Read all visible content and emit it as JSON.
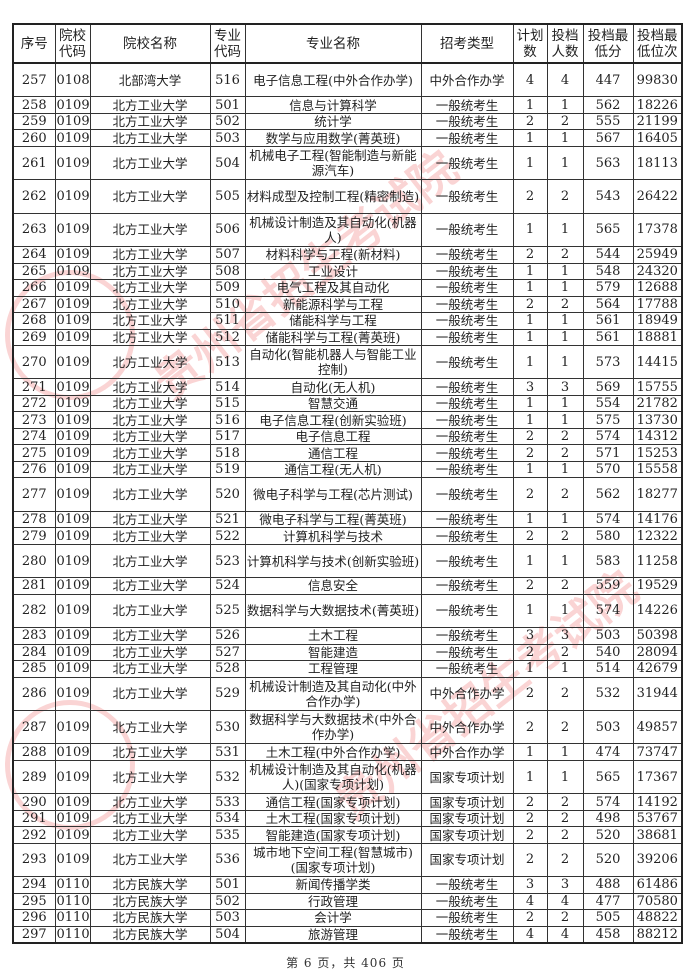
{
  "headers": [
    "序号",
    "院校代码",
    "院校名称",
    "专业代码",
    "专业名称",
    "招考类型",
    "计划数",
    "投档人数",
    "投档最低分",
    "投档最低位次"
  ],
  "rows": [
    {
      "seq": "257",
      "school_code": "0108",
      "school": "北部湾大学",
      "major_code": "516",
      "major": "电子信息工程(中外合作办学)",
      "type": "中外合作办学",
      "plan": "4",
      "admitted": "4",
      "min_score": "447",
      "min_rank": "99830",
      "tall": true
    },
    {
      "seq": "258",
      "school_code": "0109",
      "school": "北方工业大学",
      "major_code": "501",
      "major": "信息与计算科学",
      "type": "一般统考生",
      "plan": "1",
      "admitted": "1",
      "min_score": "562",
      "min_rank": "18226"
    },
    {
      "seq": "259",
      "school_code": "0109",
      "school": "北方工业大学",
      "major_code": "502",
      "major": "统计学",
      "type": "一般统考生",
      "plan": "2",
      "admitted": "2",
      "min_score": "555",
      "min_rank": "21199"
    },
    {
      "seq": "260",
      "school_code": "0109",
      "school": "北方工业大学",
      "major_code": "503",
      "major": "数学与应用数学(菁英班)",
      "type": "一般统考生",
      "plan": "1",
      "admitted": "1",
      "min_score": "567",
      "min_rank": "16405"
    },
    {
      "seq": "261",
      "school_code": "0109",
      "school": "北方工业大学",
      "major_code": "504",
      "major": "机械电子工程(智能制造与新能源汽车)",
      "type": "一般统考生",
      "plan": "1",
      "admitted": "1",
      "min_score": "563",
      "min_rank": "18113",
      "tall": true
    },
    {
      "seq": "262",
      "school_code": "0109",
      "school": "北方工业大学",
      "major_code": "505",
      "major": "材料成型及控制工程(精密制造)",
      "type": "一般统考生",
      "plan": "2",
      "admitted": "2",
      "min_score": "543",
      "min_rank": "26422",
      "tall": true
    },
    {
      "seq": "263",
      "school_code": "0109",
      "school": "北方工业大学",
      "major_code": "506",
      "major": "机械设计制造及其自动化(机器人)",
      "type": "一般统考生",
      "plan": "1",
      "admitted": "1",
      "min_score": "565",
      "min_rank": "17378",
      "tall": true
    },
    {
      "seq": "264",
      "school_code": "0109",
      "school": "北方工业大学",
      "major_code": "507",
      "major": "材料科学与工程(新材料)",
      "type": "一般统考生",
      "plan": "2",
      "admitted": "2",
      "min_score": "544",
      "min_rank": "25949"
    },
    {
      "seq": "265",
      "school_code": "0109",
      "school": "北方工业大学",
      "major_code": "508",
      "major": "工业设计",
      "type": "一般统考生",
      "plan": "1",
      "admitted": "1",
      "min_score": "548",
      "min_rank": "24320"
    },
    {
      "seq": "266",
      "school_code": "0109",
      "school": "北方工业大学",
      "major_code": "509",
      "major": "电气工程及其自动化",
      "type": "一般统考生",
      "plan": "1",
      "admitted": "1",
      "min_score": "579",
      "min_rank": "12688"
    },
    {
      "seq": "267",
      "school_code": "0109",
      "school": "北方工业大学",
      "major_code": "510",
      "major": "新能源科学与工程",
      "type": "一般统考生",
      "plan": "2",
      "admitted": "2",
      "min_score": "564",
      "min_rank": "17788"
    },
    {
      "seq": "268",
      "school_code": "0109",
      "school": "北方工业大学",
      "major_code": "511",
      "major": "储能科学与工程",
      "type": "一般统考生",
      "plan": "1",
      "admitted": "1",
      "min_score": "561",
      "min_rank": "18949"
    },
    {
      "seq": "269",
      "school_code": "0109",
      "school": "北方工业大学",
      "major_code": "512",
      "major": "储能科学与工程(菁英班)",
      "type": "一般统考生",
      "plan": "1",
      "admitted": "1",
      "min_score": "561",
      "min_rank": "18881"
    },
    {
      "seq": "270",
      "school_code": "0109",
      "school": "北方工业大学",
      "major_code": "513",
      "major": "自动化(智能机器人与智能工业控制)",
      "type": "一般统考生",
      "plan": "1",
      "admitted": "1",
      "min_score": "573",
      "min_rank": "14415",
      "tall": true
    },
    {
      "seq": "271",
      "school_code": "0109",
      "school": "北方工业大学",
      "major_code": "514",
      "major": "自动化(无人机)",
      "type": "一般统考生",
      "plan": "3",
      "admitted": "3",
      "min_score": "569",
      "min_rank": "15755"
    },
    {
      "seq": "272",
      "school_code": "0109",
      "school": "北方工业大学",
      "major_code": "515",
      "major": "智慧交通",
      "type": "一般统考生",
      "plan": "1",
      "admitted": "1",
      "min_score": "554",
      "min_rank": "21782"
    },
    {
      "seq": "273",
      "school_code": "0109",
      "school": "北方工业大学",
      "major_code": "516",
      "major": "电子信息工程(创新实验班)",
      "type": "一般统考生",
      "plan": "1",
      "admitted": "1",
      "min_score": "575",
      "min_rank": "13730"
    },
    {
      "seq": "274",
      "school_code": "0109",
      "school": "北方工业大学",
      "major_code": "517",
      "major": "电子信息工程",
      "type": "一般统考生",
      "plan": "2",
      "admitted": "2",
      "min_score": "574",
      "min_rank": "14312"
    },
    {
      "seq": "275",
      "school_code": "0109",
      "school": "北方工业大学",
      "major_code": "518",
      "major": "通信工程",
      "type": "一般统考生",
      "plan": "2",
      "admitted": "2",
      "min_score": "571",
      "min_rank": "15253"
    },
    {
      "seq": "276",
      "school_code": "0109",
      "school": "北方工业大学",
      "major_code": "519",
      "major": "通信工程(无人机)",
      "type": "一般统考生",
      "plan": "1",
      "admitted": "1",
      "min_score": "570",
      "min_rank": "15558"
    },
    {
      "seq": "277",
      "school_code": "0109",
      "school": "北方工业大学",
      "major_code": "520",
      "major": "微电子科学与工程(芯片测试)",
      "type": "一般统考生",
      "plan": "2",
      "admitted": "2",
      "min_score": "562",
      "min_rank": "18277",
      "tall": true
    },
    {
      "seq": "278",
      "school_code": "0109",
      "school": "北方工业大学",
      "major_code": "521",
      "major": "微电子科学与工程(菁英班)",
      "type": "一般统考生",
      "plan": "1",
      "admitted": "1",
      "min_score": "574",
      "min_rank": "14176"
    },
    {
      "seq": "279",
      "school_code": "0109",
      "school": "北方工业大学",
      "major_code": "522",
      "major": "计算机科学与技术",
      "type": "一般统考生",
      "plan": "2",
      "admitted": "2",
      "min_score": "580",
      "min_rank": "12322"
    },
    {
      "seq": "280",
      "school_code": "0109",
      "school": "北方工业大学",
      "major_code": "523",
      "major": "计算机科学与技术(创新实验班)",
      "type": "一般统考生",
      "plan": "1",
      "admitted": "1",
      "min_score": "583",
      "min_rank": "11258",
      "tall": true
    },
    {
      "seq": "281",
      "school_code": "0109",
      "school": "北方工业大学",
      "major_code": "524",
      "major": "信息安全",
      "type": "一般统考生",
      "plan": "2",
      "admitted": "2",
      "min_score": "559",
      "min_rank": "19529"
    },
    {
      "seq": "282",
      "school_code": "0109",
      "school": "北方工业大学",
      "major_code": "525",
      "major": "数据科学与大数据技术(菁英班)",
      "type": "一般统考生",
      "plan": "1",
      "admitted": "1",
      "min_score": "574",
      "min_rank": "14226",
      "tall": true
    },
    {
      "seq": "283",
      "school_code": "0109",
      "school": "北方工业大学",
      "major_code": "526",
      "major": "土木工程",
      "type": "一般统考生",
      "plan": "3",
      "admitted": "3",
      "min_score": "503",
      "min_rank": "50398"
    },
    {
      "seq": "284",
      "school_code": "0109",
      "school": "北方工业大学",
      "major_code": "527",
      "major": "智能建造",
      "type": "一般统考生",
      "plan": "2",
      "admitted": "2",
      "min_score": "540",
      "min_rank": "28094"
    },
    {
      "seq": "285",
      "school_code": "0109",
      "school": "北方工业大学",
      "major_code": "528",
      "major": "工程管理",
      "type": "一般统考生",
      "plan": "1",
      "admitted": "1",
      "min_score": "514",
      "min_rank": "42679"
    },
    {
      "seq": "286",
      "school_code": "0109",
      "school": "北方工业大学",
      "major_code": "529",
      "major": "机械设计制造及其自动化(中外合作办学)",
      "type": "中外合作办学",
      "plan": "2",
      "admitted": "2",
      "min_score": "532",
      "min_rank": "31944",
      "tall": true
    },
    {
      "seq": "287",
      "school_code": "0109",
      "school": "北方工业大学",
      "major_code": "530",
      "major": "数据科学与大数据技术(中外合作办学)",
      "type": "中外合作办学",
      "plan": "2",
      "admitted": "2",
      "min_score": "503",
      "min_rank": "49857",
      "tall": true
    },
    {
      "seq": "288",
      "school_code": "0109",
      "school": "北方工业大学",
      "major_code": "531",
      "major": "土木工程(中外合作办学)",
      "type": "中外合作办学",
      "plan": "1",
      "admitted": "1",
      "min_score": "474",
      "min_rank": "73747"
    },
    {
      "seq": "289",
      "school_code": "0109",
      "school": "北方工业大学",
      "major_code": "532",
      "major": "机械设计制造及其自动化(机器人)(国家专项计划)",
      "type": "国家专项计划",
      "plan": "1",
      "admitted": "1",
      "min_score": "565",
      "min_rank": "17367",
      "tall": true
    },
    {
      "seq": "290",
      "school_code": "0109",
      "school": "北方工业大学",
      "major_code": "533",
      "major": "通信工程(国家专项计划)",
      "type": "国家专项计划",
      "plan": "2",
      "admitted": "2",
      "min_score": "574",
      "min_rank": "14192"
    },
    {
      "seq": "291",
      "school_code": "0109",
      "school": "北方工业大学",
      "major_code": "534",
      "major": "土木工程(国家专项计划)",
      "type": "国家专项计划",
      "plan": "2",
      "admitted": "2",
      "min_score": "498",
      "min_rank": "53767"
    },
    {
      "seq": "292",
      "school_code": "0109",
      "school": "北方工业大学",
      "major_code": "535",
      "major": "智能建造(国家专项计划)",
      "type": "国家专项计划",
      "plan": "2",
      "admitted": "2",
      "min_score": "520",
      "min_rank": "38681"
    },
    {
      "seq": "293",
      "school_code": "0109",
      "school": "北方工业大学",
      "major_code": "536",
      "major": "城市地下空间工程(智慧城市)(国家专项计划)",
      "type": "国家专项计划",
      "plan": "2",
      "admitted": "2",
      "min_score": "520",
      "min_rank": "39206",
      "tall": true
    },
    {
      "seq": "294",
      "school_code": "0110",
      "school": "北方民族大学",
      "major_code": "501",
      "major": "新闻传播学类",
      "type": "一般统考生",
      "plan": "3",
      "admitted": "3",
      "min_score": "488",
      "min_rank": "61486"
    },
    {
      "seq": "295",
      "school_code": "0110",
      "school": "北方民族大学",
      "major_code": "502",
      "major": "行政管理",
      "type": "一般统考生",
      "plan": "4",
      "admitted": "4",
      "min_score": "477",
      "min_rank": "70580"
    },
    {
      "seq": "296",
      "school_code": "0110",
      "school": "北方民族大学",
      "major_code": "503",
      "major": "会计学",
      "type": "一般统考生",
      "plan": "2",
      "admitted": "2",
      "min_score": "505",
      "min_rank": "48822"
    },
    {
      "seq": "297",
      "school_code": "0110",
      "school": "北方民族大学",
      "major_code": "504",
      "major": "旅游管理",
      "type": "一般统考生",
      "plan": "4",
      "admitted": "4",
      "min_score": "458",
      "min_rank": "88212"
    }
  ],
  "footer": "第 6 页，共 406 页",
  "watermark": "贵州省招生考试院",
  "watermark_color": "#e63c3c"
}
